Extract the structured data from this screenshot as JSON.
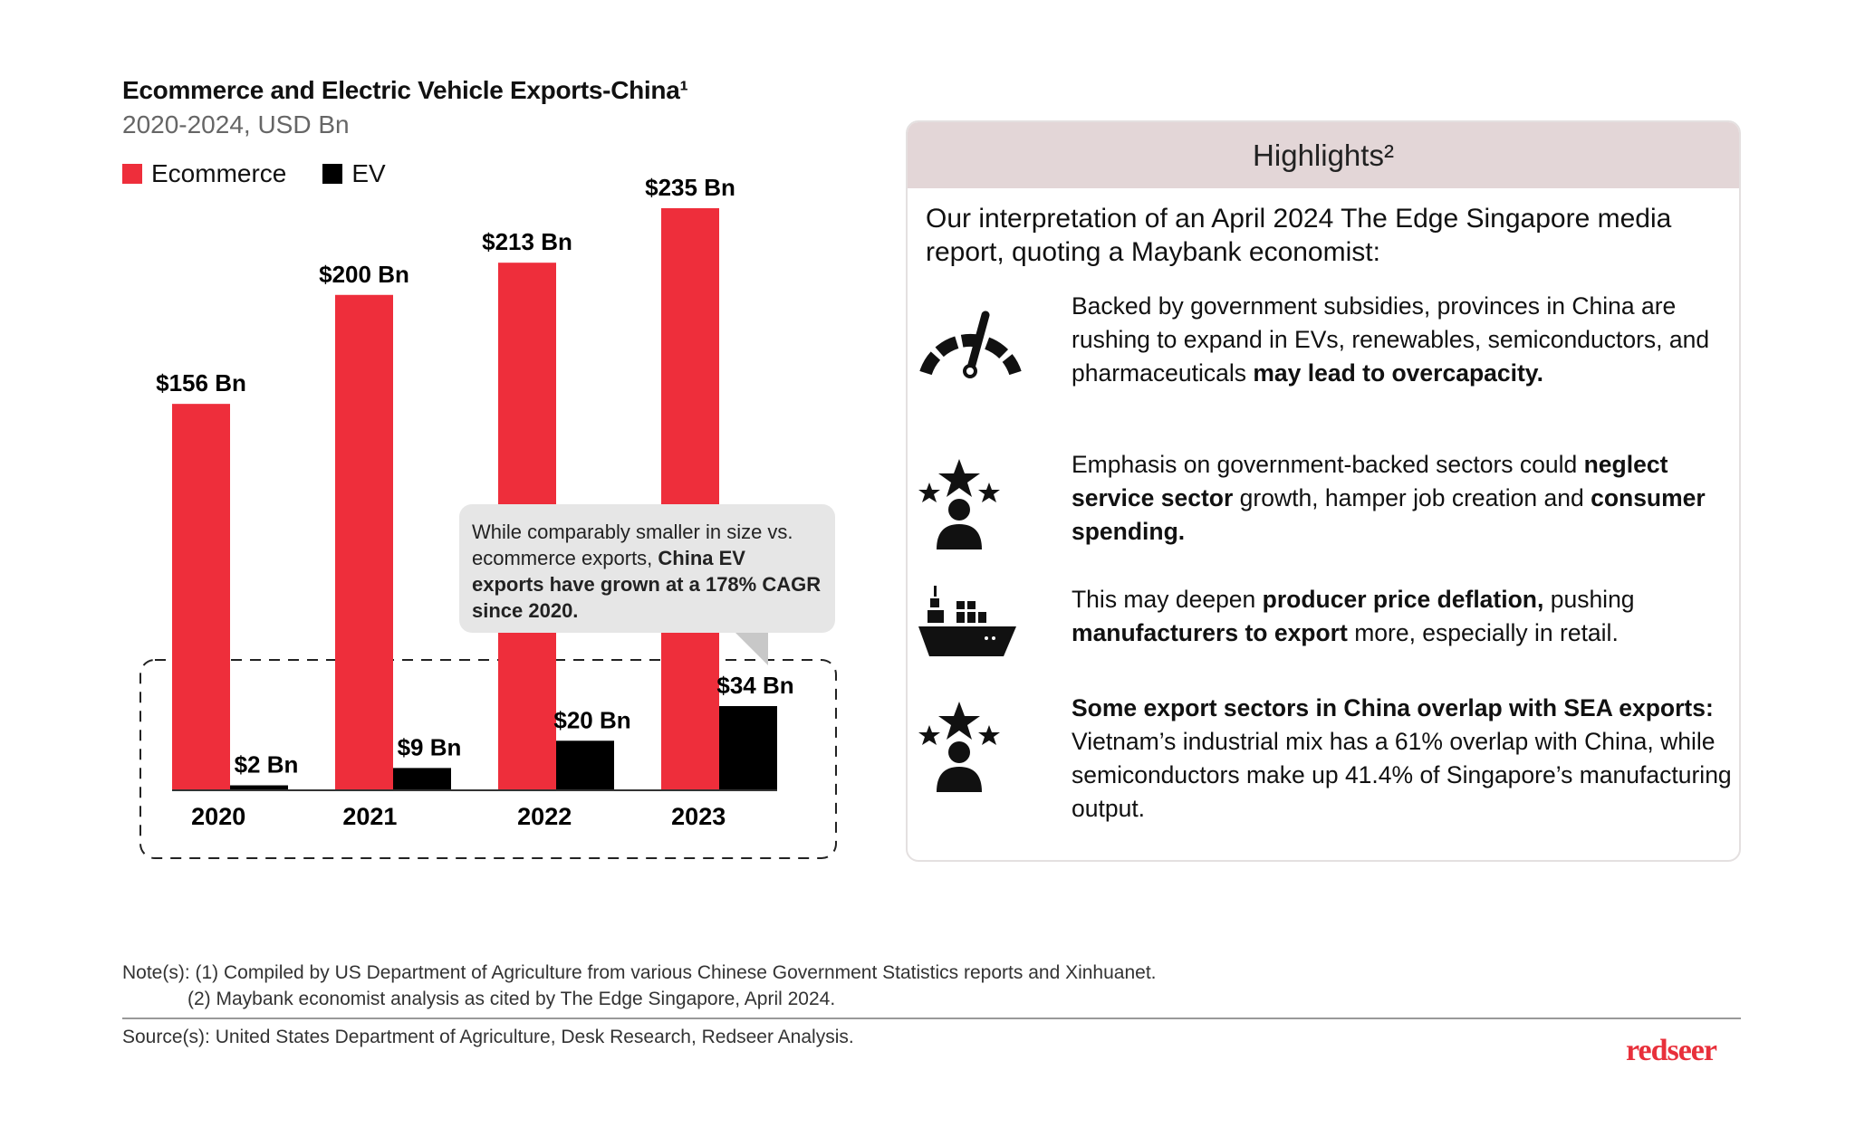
{
  "chart_data": {
    "type": "bar",
    "title": "Ecommerce and Electric Vehicle Exports-China¹",
    "subtitle": "2020-2024, USD Bn",
    "categories": [
      "2020",
      "2021",
      "2022",
      "2023"
    ],
    "series": [
      {
        "name": "Ecommerce",
        "values": [
          156,
          200,
          213,
          235
        ],
        "labels": [
          "$156 Bn",
          "$200 Bn",
          "$213 Bn",
          "$235 Bn"
        ],
        "color": "#ee2e3b"
      },
      {
        "name": "EV",
        "values": [
          2,
          9,
          20,
          34
        ],
        "labels": [
          "$2 Bn",
          "$9 Bn",
          "$20 Bn",
          "$34 Bn"
        ],
        "color": "#000000"
      }
    ],
    "ylim": [
      0,
      235
    ],
    "legend": "top-left",
    "grid": false,
    "annotation": {
      "text_regular": "While comparably smaller in size vs. ecommerce exports, ",
      "text_bold": "China EV exports have grown at a 178% CAGR since 2020."
    }
  },
  "highlights": {
    "title": "Highlights²",
    "intro": "Our interpretation of an April 2024 The Edge Singapore media report, quoting a Maybank economist:",
    "items": [
      {
        "icon": "speedometer-icon",
        "parts": [
          {
            "t": "Backed by government subsidies, provinces in China are rushing to expand in EVs, renewables, semiconductors, and pharmaceuticals ",
            "b": false
          },
          {
            "t": "may lead to overcapacity.",
            "b": true
          }
        ]
      },
      {
        "icon": "person-stars-icon",
        "parts": [
          {
            "t": "Emphasis on government-backed sectors could ",
            "b": false
          },
          {
            "t": "neglect service sector",
            "b": true
          },
          {
            "t": " growth, hamper job creation and ",
            "b": false
          },
          {
            "t": "consumer spending.",
            "b": true
          }
        ]
      },
      {
        "icon": "cargo-ship-icon",
        "parts": [
          {
            "t": "This may deepen ",
            "b": false
          },
          {
            "t": "producer price deflation,",
            "b": true
          },
          {
            "t": " pushing ",
            "b": false
          },
          {
            "t": "manufacturers to export",
            "b": true
          },
          {
            "t": " more, especially in retail.",
            "b": false
          }
        ]
      },
      {
        "icon": "person-stars-icon",
        "parts": [
          {
            "t": "Some export sectors in China overlap with SEA exports:",
            "b": true
          },
          {
            "t": " Vietnam’s industrial mix has a 61% overlap with China, while semiconductors make up 41.4% of Singapore’s manufacturing output.",
            "b": false
          }
        ]
      }
    ]
  },
  "footer": {
    "note1": "Note(s): (1) Compiled by US Department of Agriculture from various Chinese Government Statistics reports and Xinhuanet.",
    "note2": "(2) Maybank economist analysis as cited by The Edge Singapore, April 2024.",
    "source": "Source(s): United States Department of Agriculture, Desk Research, Redseer Analysis.",
    "logo": "redseer"
  }
}
